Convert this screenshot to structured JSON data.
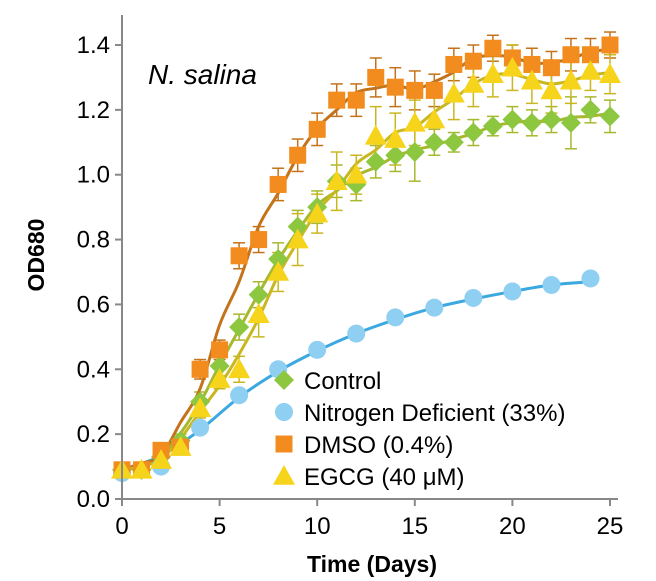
{
  "chart_data": {
    "type": "scatter",
    "title": "",
    "annotation": "N. salina",
    "xlabel": "Time (Days)",
    "ylabel": "OD680",
    "xlim": [
      0,
      25
    ],
    "ylim": [
      0,
      1.4
    ],
    "xticks": [
      "0",
      "5",
      "10",
      "15",
      "20",
      "25"
    ],
    "yticks": [
      "0.0",
      "0.2",
      "0.4",
      "0.6",
      "0.8",
      "1.0",
      "1.2",
      "1.4"
    ],
    "grid": false,
    "legend_position": "bottom-right",
    "series": [
      {
        "name": "Control",
        "marker": "diamond",
        "color": "#8DC63F",
        "line_color": "#A8B82E",
        "x": [
          0,
          1,
          2,
          3,
          4,
          5,
          6,
          7,
          8,
          9,
          10,
          11,
          12,
          13,
          14,
          15,
          16,
          17,
          18,
          19,
          20,
          21,
          22,
          23,
          24,
          25
        ],
        "y": [
          0.09,
          0.09,
          0.13,
          0.18,
          0.3,
          0.41,
          0.53,
          0.63,
          0.74,
          0.84,
          0.9,
          0.98,
          0.97,
          1.04,
          1.06,
          1.07,
          1.1,
          1.1,
          1.13,
          1.15,
          1.17,
          1.16,
          1.17,
          1.16,
          1.2,
          1.18
        ],
        "err": [
          0.01,
          0.01,
          0.02,
          0.02,
          0.03,
          0.03,
          0.04,
          0.04,
          0.05,
          0.05,
          0.05,
          0.05,
          0.05,
          0.05,
          0.05,
          0.09,
          0.04,
          0.03,
          0.04,
          0.03,
          0.04,
          0.04,
          0.04,
          0.08,
          0.04,
          0.05
        ]
      },
      {
        "name": "Nitrogen Deficient (33%)",
        "marker": "circle",
        "color": "#8ECFF2",
        "line_color": "#3BA9E0",
        "x": [
          0,
          2,
          4,
          6,
          8,
          10,
          12,
          14,
          16,
          18,
          20,
          22,
          24
        ],
        "y": [
          0.08,
          0.1,
          0.22,
          0.32,
          0.4,
          0.46,
          0.51,
          0.56,
          0.59,
          0.62,
          0.64,
          0.66,
          0.68
        ],
        "err": [
          0.01,
          0.01,
          0.01,
          0.01,
          0.01,
          0.01,
          0.01,
          0.01,
          0.01,
          0.01,
          0.01,
          0.01,
          0.01
        ]
      },
      {
        "name": "DMSO (0.4%)",
        "marker": "square",
        "color": "#F28C1E",
        "line_color": "#C5731A",
        "x": [
          0,
          1,
          2,
          3,
          4,
          5,
          6,
          7,
          8,
          9,
          10,
          11,
          12,
          13,
          14,
          15,
          16,
          17,
          18,
          19,
          20,
          21,
          22,
          23,
          24,
          25
        ],
        "y": [
          0.09,
          0.09,
          0.15,
          0.16,
          0.4,
          0.46,
          0.75,
          0.8,
          0.97,
          1.06,
          1.14,
          1.23,
          1.23,
          1.3,
          1.27,
          1.26,
          1.26,
          1.34,
          1.35,
          1.39,
          1.36,
          1.34,
          1.33,
          1.37,
          1.37,
          1.4
        ],
        "err": [
          0.01,
          0.01,
          0.02,
          0.02,
          0.03,
          0.03,
          0.04,
          0.04,
          0.05,
          0.05,
          0.05,
          0.05,
          0.05,
          0.06,
          0.06,
          0.06,
          0.05,
          0.05,
          0.05,
          0.04,
          0.04,
          0.05,
          0.05,
          0.05,
          0.05,
          0.04
        ]
      },
      {
        "name": "EGCG (40 μM)",
        "marker": "triangle",
        "color": "#F6D41C",
        "line_color": "#C9B722",
        "x": [
          0,
          1,
          2,
          3,
          4,
          5,
          6,
          7,
          8,
          9,
          10,
          11,
          12,
          13,
          14,
          15,
          16,
          17,
          18,
          19,
          20,
          21,
          22,
          23,
          24,
          25
        ],
        "y": [
          0.09,
          0.09,
          0.12,
          0.16,
          0.28,
          0.37,
          0.4,
          0.57,
          0.7,
          0.8,
          0.88,
          0.98,
          1.0,
          1.12,
          1.11,
          1.16,
          1.17,
          1.25,
          1.28,
          1.31,
          1.33,
          1.29,
          1.26,
          1.29,
          1.32,
          1.31
        ],
        "err": [
          0.01,
          0.01,
          0.02,
          0.02,
          0.03,
          0.03,
          0.04,
          0.07,
          0.06,
          0.08,
          0.06,
          0.09,
          0.06,
          0.09,
          0.08,
          0.07,
          0.07,
          0.08,
          0.07,
          0.07,
          0.07,
          0.07,
          0.07,
          0.07,
          0.06,
          0.06
        ]
      }
    ]
  }
}
